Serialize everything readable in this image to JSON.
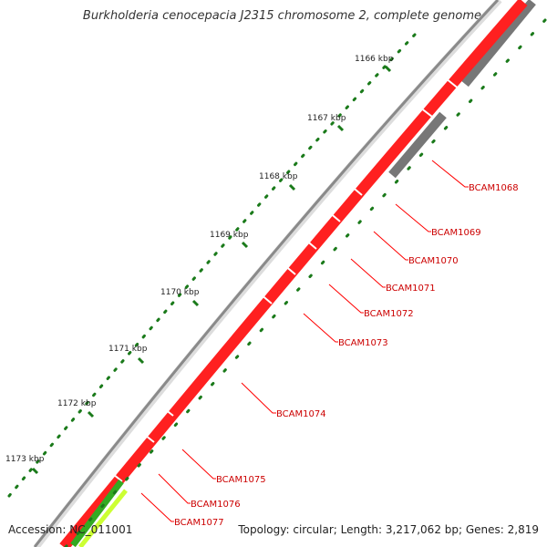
{
  "map": {
    "title": "Burkholderia cenocepacia J2315 chromosome 2, complete genome",
    "accession_label": "Accession: NC_011001",
    "summary_label": "Topology: circular; Length: 3,217,062 bp; Genes: 2,819"
  },
  "ruler": {
    "ticks": [
      "1166 kbp",
      "1167 kbp",
      "1168 kbp",
      "1169 kbp",
      "1170 kbp",
      "1171 kbp",
      "1172 kbp",
      "1173 kbp"
    ]
  },
  "genes": [
    "BCAM1068",
    "BCAM1069",
    "BCAM1070",
    "BCAM1071",
    "BCAM1072",
    "BCAM1073",
    "BCAM1074",
    "BCAM1075",
    "BCAM1076",
    "BCAM1077"
  ],
  "colors": {
    "backbone": "#8c8c8c",
    "gene_forward": "#ff0000",
    "gene_other": "#777777",
    "gene_green": "#33aa22",
    "gene_lightgreen": "#ccff33",
    "dotted_track": "#1a7a1a",
    "label": "#cc0000",
    "leader": "#ff0000"
  }
}
